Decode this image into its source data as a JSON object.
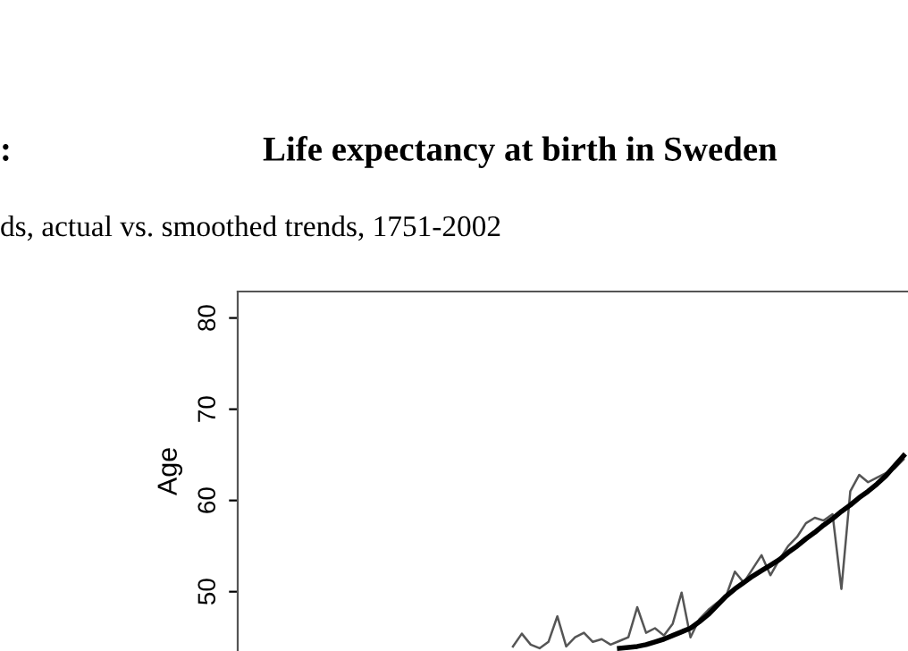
{
  "chart_data": {
    "type": "line",
    "title": "Life expectancy at birth in Sweden",
    "subtitle": "ds, actual vs. smoothed trends, 1751-2002",
    "annotations": [
      ":"
    ],
    "ylabel": "Age",
    "categories": [
      null,
      null,
      null,
      null,
      null,
      null,
      null,
      null,
      null,
      null,
      null,
      null,
      null,
      null,
      null,
      null,
      null,
      null,
      null,
      null,
      null,
      null,
      null,
      null,
      null,
      null,
      null,
      null,
      null,
      null,
      null,
      null,
      null,
      null,
      null,
      null,
      null,
      null,
      null,
      null,
      null,
      null,
      null,
      null,
      null,
      null,
      null,
      null,
      null,
      null,
      null,
      null,
      null,
      null,
      null,
      null,
      null,
      null,
      null,
      null,
      null,
      null,
      null,
      null,
      null,
      null,
      null,
      null,
      null,
      null,
      null,
      null,
      null,
      null,
      null,
      null
    ],
    "series": [
      {
        "color": "#555555",
        "values": [
          null,
          null,
          null,
          null,
          null,
          null,
          null,
          null,
          null,
          null,
          null,
          null,
          null,
          null,
          null,
          null,
          null,
          null,
          null,
          null,
          null,
          null,
          null,
          null,
          null,
          null,
          null,
          null,
          null,
          null,
          null,
          44.0,
          45.4,
          44.2,
          43.8,
          44.5,
          47.3,
          44.0,
          45.0,
          45.5,
          44.5,
          44.8,
          44.2,
          44.6,
          45.0,
          48.3,
          45.5,
          46.0,
          45.2,
          46.5,
          49.9,
          45.0,
          47.0,
          48.0,
          48.8,
          49.5,
          52.2,
          51.0,
          52.5,
          54.0,
          51.8,
          53.5,
          55.0,
          56.0,
          57.5,
          58.1,
          57.8,
          58.5,
          50.3,
          61.0,
          62.8,
          62.0,
          62.5,
          63.0,
          63.5,
          64.5
        ]
      },
      {
        "color": "#000000",
        "type": "line",
        "values": [
          null,
          null,
          null,
          null,
          null,
          null,
          null,
          null,
          null,
          null,
          null,
          null,
          null,
          null,
          null,
          null,
          null,
          null,
          null,
          null,
          null,
          null,
          null,
          null,
          null,
          null,
          null,
          null,
          null,
          null,
          null,
          null,
          null,
          null,
          null,
          null,
          null,
          null,
          null,
          null,
          null,
          null,
          null,
          43.8,
          43.9,
          44.0,
          44.2,
          44.5,
          44.8,
          45.2,
          45.6,
          46.0,
          46.7,
          47.5,
          48.5,
          49.5,
          50.3,
          51.0,
          51.7,
          52.3,
          52.9,
          53.5,
          54.3,
          55.0,
          55.8,
          56.5,
          57.3,
          58.0,
          58.8,
          59.5,
          60.3,
          61.0,
          61.8,
          62.7,
          63.8,
          64.9
        ]
      }
    ],
    "ylim": [
      43.5,
      82.9
    ],
    "yticks": [
      50,
      60,
      70,
      80
    ],
    "grid": false,
    "legend": false
  }
}
